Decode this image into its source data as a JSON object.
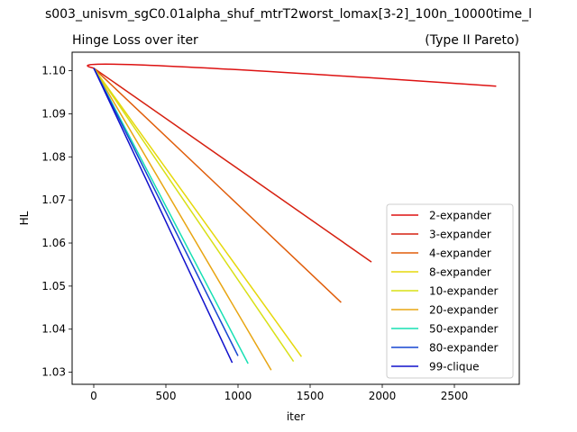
{
  "suptitle": "s003_unisvm_sgC0.01alpha_shuf_mtrT2worst_lomax[3-2]_100n_10000time_l",
  "chart_data": {
    "type": "line",
    "title_left": "Hinge Loss over iter",
    "title_right": "(Type II Pareto)",
    "xlabel": "iter",
    "ylabel": "HL",
    "xlim": [
      -150,
      2950
    ],
    "ylim": [
      1.0272,
      1.1043
    ],
    "xticks": [
      0,
      500,
      1000,
      1500,
      2000,
      2500
    ],
    "yticks": [
      1.03,
      1.04,
      1.05,
      1.06,
      1.07,
      1.08,
      1.09,
      1.1
    ],
    "ytick_labels": [
      "1.03",
      "1.04",
      "1.05",
      "1.06",
      "1.07",
      "1.08",
      "1.09",
      "1.10"
    ],
    "grid": false,
    "legend_position": "lower-right",
    "series": [
      {
        "name": "2-expander",
        "color": "#dd1111",
        "curve": "arc",
        "x": [
          0,
          2790
        ],
        "y": [
          1.1006,
          1.0964
        ],
        "peak_x": 500,
        "peak_y": 1.1011
      },
      {
        "name": "3-expander",
        "color": "#d62010",
        "curve": "straight",
        "x": [
          0,
          1925
        ],
        "y": [
          1.1006,
          1.0556
        ]
      },
      {
        "name": "4-expander",
        "color": "#e05d0a",
        "curve": "straight",
        "x": [
          0,
          1715
        ],
        "y": [
          1.1006,
          1.0462
        ]
      },
      {
        "name": "8-expander",
        "color": "#e6d80b",
        "curve": "straight",
        "x": [
          0,
          1440
        ],
        "y": [
          1.1006,
          1.0336
        ]
      },
      {
        "name": "10-expander",
        "color": "#d8e015",
        "curve": "straight",
        "x": [
          0,
          1385
        ],
        "y": [
          1.1006,
          1.0325
        ]
      },
      {
        "name": "20-expander",
        "color": "#e8a512",
        "curve": "straight",
        "x": [
          0,
          1230
        ],
        "y": [
          1.1006,
          1.0305
        ]
      },
      {
        "name": "50-expander",
        "color": "#17e0b4",
        "curve": "straight",
        "x": [
          0,
          1070
        ],
        "y": [
          1.1006,
          1.032
        ]
      },
      {
        "name": "80-expander",
        "color": "#1545d0",
        "curve": "straight",
        "x": [
          0,
          1000
        ],
        "y": [
          1.1006,
          1.0338
        ]
      },
      {
        "name": "99-clique",
        "color": "#1010cc",
        "curve": "straight",
        "x": [
          0,
          960
        ],
        "y": [
          1.1006,
          1.0322
        ]
      }
    ]
  }
}
